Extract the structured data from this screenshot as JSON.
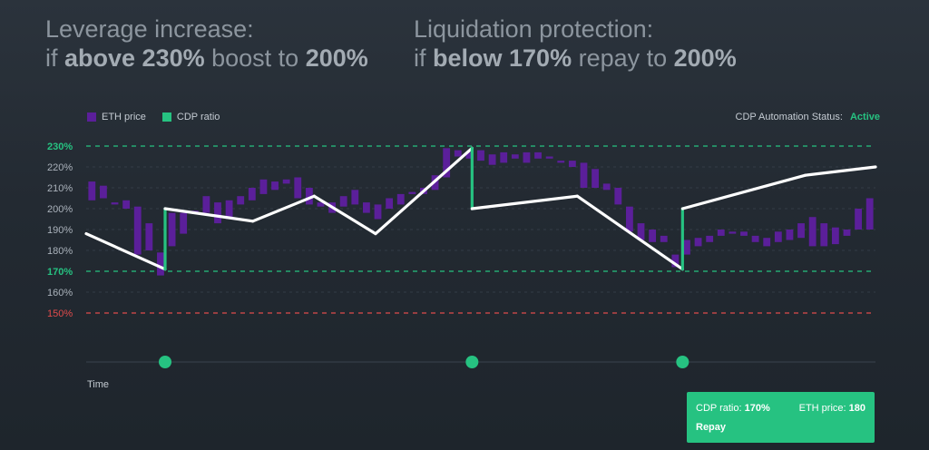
{
  "headlines": {
    "left": {
      "line1": "Leverage increase:",
      "line2_prefix": "if ",
      "line2_bold1": "above 230%",
      "line2_mid": " boost to ",
      "line2_bold2": "200%"
    },
    "right": {
      "line1": "Liquidation protection:",
      "line2_prefix": "if ",
      "line2_bold1": "below 170%",
      "line2_mid": " repay to ",
      "line2_bold2": "200%"
    }
  },
  "legend": {
    "eth_label": "ETH price",
    "cdp_label": "CDP ratio",
    "eth_color": "#5b1f9a",
    "cdp_color": "#26c281"
  },
  "status": {
    "label": "CDP Automation Status:",
    "value": "Active"
  },
  "time_label": "Time",
  "card": {
    "cdp_label": "CDP ratio:",
    "cdp_value": "170%",
    "eth_label": "ETH price:",
    "eth_value": "180",
    "action": "Repay"
  },
  "chart_data": {
    "type": "line",
    "xlabel": "Time",
    "ylim": [
      150,
      230
    ],
    "y_ticks": [
      "230%",
      "220%",
      "210%",
      "200%",
      "190%",
      "180%",
      "170%",
      "160%",
      "150%"
    ],
    "highlight_ticks": {
      "230%": "#26c281",
      "170%": "#26c281",
      "150%": "#e04b4b"
    },
    "thresholds": [
      {
        "value": 230,
        "color": "#26c281"
      },
      {
        "value": 170,
        "color": "#26c281"
      },
      {
        "value": 150,
        "color": "#e04b4b"
      }
    ],
    "cdp_ratio_line": {
      "x": [
        0,
        9,
        9,
        19,
        26,
        33,
        44,
        44,
        56,
        68,
        68,
        82,
        90
      ],
      "y": [
        188,
        171,
        200,
        194,
        206,
        188,
        229,
        200,
        206,
        171,
        200,
        216,
        220
      ]
    },
    "eth_price_bars": [
      {
        "o": 213,
        "c": 204
      },
      {
        "o": 211,
        "c": 205
      },
      {
        "o": 203,
        "c": 202
      },
      {
        "o": 204,
        "c": 200
      },
      {
        "o": 201,
        "c": 178
      },
      {
        "o": 193,
        "c": 180
      },
      {
        "o": 179,
        "c": 168
      },
      {
        "o": 198,
        "c": 182
      },
      {
        "o": 198,
        "c": 188
      },
      {
        "o": 199,
        "c": 198
      },
      {
        "o": 206,
        "c": 198
      },
      {
        "o": 203,
        "c": 193
      },
      {
        "o": 204,
        "c": 195
      },
      {
        "o": 206,
        "c": 202
      },
      {
        "o": 210,
        "c": 204
      },
      {
        "o": 214,
        "c": 207
      },
      {
        "o": 213,
        "c": 209
      },
      {
        "o": 214,
        "c": 212
      },
      {
        "o": 215,
        "c": 205
      },
      {
        "o": 210,
        "c": 202
      },
      {
        "o": 203,
        "c": 201
      },
      {
        "o": 203,
        "c": 198
      },
      {
        "o": 206,
        "c": 201
      },
      {
        "o": 209,
        "c": 202
      },
      {
        "o": 203,
        "c": 198
      },
      {
        "o": 202,
        "c": 195
      },
      {
        "o": 205,
        "c": 200
      },
      {
        "o": 207,
        "c": 202
      },
      {
        "o": 208,
        "c": 207
      },
      {
        "o": 210,
        "c": 207
      },
      {
        "o": 216,
        "c": 209
      },
      {
        "o": 229,
        "c": 215
      },
      {
        "o": 228,
        "c": 225
      },
      {
        "o": 227,
        "c": 224
      },
      {
        "o": 228,
        "c": 223
      },
      {
        "o": 226,
        "c": 221
      },
      {
        "o": 227,
        "c": 222
      },
      {
        "o": 226,
        "c": 224
      },
      {
        "o": 227,
        "c": 222
      },
      {
        "o": 227,
        "c": 224
      },
      {
        "o": 225,
        "c": 224
      },
      {
        "o": 223,
        "c": 222
      },
      {
        "o": 223,
        "c": 220
      },
      {
        "o": 222,
        "c": 210
      },
      {
        "o": 219,
        "c": 210
      },
      {
        "o": 212,
        "c": 209
      },
      {
        "o": 210,
        "c": 202
      },
      {
        "o": 201,
        "c": 189
      },
      {
        "o": 193,
        "c": 185
      },
      {
        "o": 190,
        "c": 184
      },
      {
        "o": 187,
        "c": 184
      },
      {
        "o": 178,
        "c": 172
      },
      {
        "o": 185,
        "c": 178
      },
      {
        "o": 186,
        "c": 182
      },
      {
        "o": 187,
        "c": 184
      },
      {
        "o": 190,
        "c": 187
      },
      {
        "o": 189,
        "c": 188
      },
      {
        "o": 189,
        "c": 187
      },
      {
        "o": 187,
        "c": 184
      },
      {
        "o": 186,
        "c": 182
      },
      {
        "o": 189,
        "c": 184
      },
      {
        "o": 190,
        "c": 185
      },
      {
        "o": 193,
        "c": 186
      },
      {
        "o": 196,
        "c": 182
      },
      {
        "o": 193,
        "c": 182
      },
      {
        "o": 191,
        "c": 183
      },
      {
        "o": 190,
        "c": 187
      },
      {
        "o": 200,
        "c": 190
      },
      {
        "o": 205,
        "c": 190
      }
    ],
    "x_markers": [
      9,
      44,
      68
    ]
  }
}
